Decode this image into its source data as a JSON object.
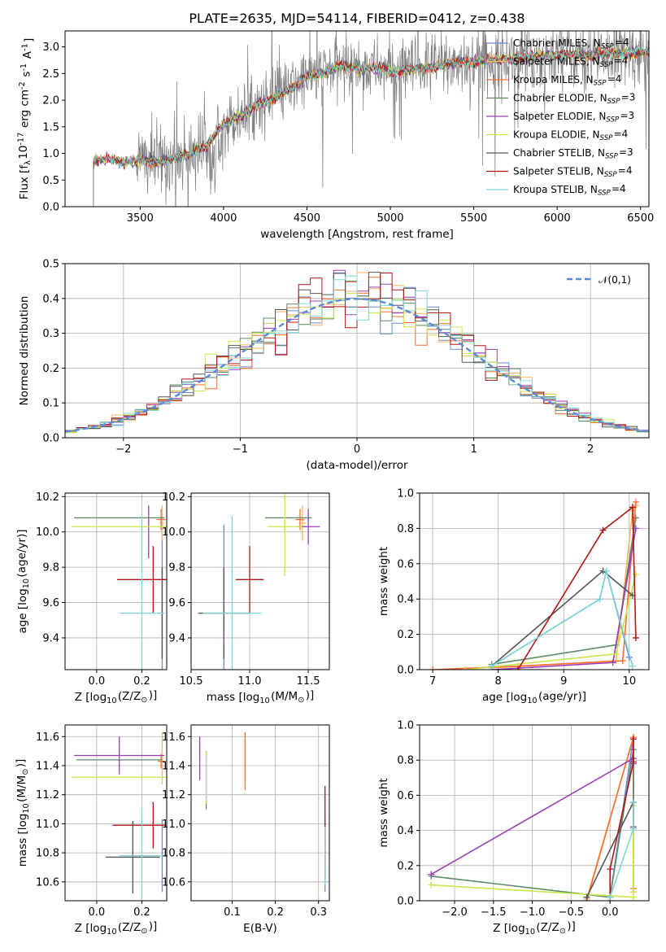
{
  "colors": {
    "series": [
      "#6a8bd8",
      "#fdb462",
      "#fb6d31",
      "#5b8a65",
      "#9b3eb6",
      "#c7e84b",
      "#555555",
      "#b01616",
      "#7fd7d7"
    ],
    "normal": "#5b8ad8",
    "spectrum": "#7f7f7f"
  },
  "chart_data": [
    {
      "id": "spectrum",
      "type": "line",
      "title": "PLATE=2635, MJD=54114, FIBERID=0412, z=0.438",
      "xlabel": "wavelength [Angstrom, rest frame]",
      "ylabel": "Flux [f$_\\lambda$10$^{-17}$ erg cm$^{-2}$ s$^{-1}$ A$^{-1}$]",
      "xlim": [
        3050,
        6550
      ],
      "ylim": [
        0,
        3.3
      ],
      "xticks": [
        3500,
        4000,
        4500,
        5000,
        5500,
        6000,
        6500
      ],
      "yticks": [
        0.0,
        0.5,
        1.0,
        1.5,
        2.0,
        2.5,
        3.0
      ],
      "grid": false,
      "legend_position": "top-right",
      "legend": [
        "Chabrier MILES, N$_{SSP}$=4",
        "Salpeter MILES, N$_{SSP}$=4",
        "Kroupa MILES, N$_{SSP}$=4",
        "Chabrier ELODIE, N$_{SSP}$=3",
        "Salpeter ELODIE, N$_{SSP}$=3",
        "Kroupa ELODIE, N$_{SSP}$=4",
        "Chabrier STELIB, N$_{SSP}$=3",
        "Salpeter STELIB, N$_{SSP}$=4",
        "Kroupa STELIB, N$_{SSP}$=4"
      ],
      "continuum": {
        "x": [
          3220,
          3300,
          3400,
          3500,
          3600,
          3700,
          3800,
          3900,
          4000,
          4100,
          4200,
          4300,
          4400,
          4500,
          4600,
          4700,
          4800,
          4900,
          5000,
          5200,
          5400,
          5600,
          5800,
          6000,
          6200,
          6500
        ],
        "y": [
          0.85,
          0.9,
          0.85,
          0.87,
          0.85,
          0.9,
          1.0,
          1.15,
          1.55,
          1.7,
          1.9,
          2.05,
          2.2,
          2.45,
          2.5,
          2.65,
          2.6,
          2.6,
          2.55,
          2.6,
          2.7,
          2.75,
          2.8,
          2.85,
          2.85,
          2.9
        ]
      },
      "noise_start_x": 3480
    },
    {
      "id": "residuals",
      "type": "line",
      "xlabel": "(data-model)/error",
      "ylabel": "Normed distribution",
      "xlim": [
        -2.5,
        2.5
      ],
      "ylim": [
        0,
        0.5
      ],
      "xticks": [
        -2,
        -1,
        0,
        1,
        2
      ],
      "yticks": [
        0.0,
        0.1,
        0.2,
        0.3,
        0.4,
        0.5
      ],
      "grid": true,
      "legend_position": "top-right",
      "normal_label": "$\\mathcal{N}(0,1)$",
      "bin_width": 0.1
    },
    {
      "id": "age-vs-Z",
      "type": "scatter",
      "xlabel": "Z [log$_{10}$(Z/Z$_\\odot$)]",
      "ylabel": "age  [log$_{10}$(age/yr)]",
      "xlim": [
        -0.14,
        0.31
      ],
      "ylim": [
        9.22,
        10.22
      ],
      "xticks": [
        0.0,
        0.2
      ],
      "yticks": [
        9.4,
        9.6,
        9.8,
        10.0,
        10.2
      ],
      "grid": true,
      "errorbars": [
        {
          "series": 0,
          "x": 0.29,
          "y": 9.54,
          "xerr": 0.0,
          "yerr": 0.5
        },
        {
          "series": 1,
          "x": 0.29,
          "y": 10.05,
          "xerr": 0.01,
          "yerr": 0.1
        },
        {
          "series": 2,
          "x": 0.285,
          "y": 10.07,
          "xerr": 0.02,
          "yerr": 0.06
        },
        {
          "series": 3,
          "x": 0.1,
          "y": 10.08,
          "xerr": 0.2,
          "yerr": 0.0
        },
        {
          "series": 4,
          "x": 0.23,
          "y": 10.0,
          "xerr": 0.0,
          "yerr": 0.15
        },
        {
          "series": 5,
          "x": 0.1,
          "y": 10.03,
          "xerr": 0.21,
          "yerr": 0.0
        },
        {
          "series": 6,
          "x": 0.29,
          "y": 9.54,
          "xerr": 0.005,
          "yerr": 0.26
        },
        {
          "series": 7,
          "x": 0.25,
          "y": 9.73,
          "xerr": 0.16,
          "yerr": 0.19
        },
        {
          "series": 8,
          "x": 0.2,
          "y": 9.54,
          "xerr": 0.1,
          "yerr": 0.55
        }
      ]
    },
    {
      "id": "age-vs-mass",
      "type": "scatter",
      "xlabel": "mass [log$_{10}$(M/M$_\\odot$)]",
      "xlim": [
        10.5,
        11.68
      ],
      "ylim": [
        9.22,
        10.22
      ],
      "xticks": [
        10.5,
        11.0,
        11.5
      ],
      "yticks": [
        9.4,
        9.6,
        9.8,
        10.0,
        10.2
      ],
      "grid": true,
      "errorbars": [
        {
          "series": 0,
          "x": 10.78,
          "y": 9.54,
          "xerr": 0.01,
          "yerr": 0.5
        },
        {
          "series": 1,
          "x": 11.45,
          "y": 10.05,
          "xerr": 0.03,
          "yerr": 0.1
        },
        {
          "series": 2,
          "x": 11.43,
          "y": 10.07,
          "xerr": 0.04,
          "yerr": 0.06
        },
        {
          "series": 3,
          "x": 11.33,
          "y": 10.08,
          "xerr": 0.2,
          "yerr": 0.0
        },
        {
          "series": 4,
          "x": 11.5,
          "y": 10.03,
          "xerr": 0.1,
          "yerr": 0.1
        },
        {
          "series": 5,
          "x": 11.3,
          "y": 10.03,
          "xerr": 0.15,
          "yerr": 0.28
        },
        {
          "series": 6,
          "x": 10.78,
          "y": 9.54,
          "xerr": 0.22,
          "yerr": 0.26
        },
        {
          "series": 7,
          "x": 11.0,
          "y": 9.73,
          "xerr": 0.12,
          "yerr": 0.19
        },
        {
          "series": 8,
          "x": 10.85,
          "y": 9.54,
          "xerr": 0.25,
          "yerr": 0.55
        }
      ]
    },
    {
      "id": "weight-vs-age",
      "type": "line",
      "xlabel": "age  [log$_{10}$(age/yr)]",
      "ylabel": "mass weight",
      "xlim": [
        6.8,
        10.3
      ],
      "ylim": [
        0,
        1.0
      ],
      "xticks": [
        7,
        8,
        9,
        10
      ],
      "yticks": [
        0.0,
        0.2,
        0.4,
        0.6,
        0.8,
        1.0
      ],
      "grid": true,
      "series": [
        {
          "x": [
            7.9,
            9.55,
            9.65,
            10.0
          ],
          "y": [
            0.02,
            0.4,
            0.56,
            0.07
          ]
        },
        {
          "x": [
            7.9,
            9.8,
            10.05,
            10.1
          ],
          "y": [
            0.01,
            0.05,
            0.9,
            0.93
          ]
        },
        {
          "x": [
            7.0,
            8.3,
            9.9,
            10.1
          ],
          "y": [
            0.0,
            0.02,
            0.05,
            0.95
          ]
        },
        {
          "x": [
            7.9,
            9.8,
            10.1
          ],
          "y": [
            0.03,
            0.14,
            0.86
          ]
        },
        {
          "x": [
            7.9,
            9.75,
            10.1
          ],
          "y": [
            0.0,
            0.04,
            0.8
          ]
        },
        {
          "x": [
            7.5,
            9.8,
            10.1
          ],
          "y": [
            0.0,
            0.09,
            0.54
          ]
        },
        {
          "x": [
            7.9,
            9.6,
            10.05
          ],
          "y": [
            0.02,
            0.56,
            0.42
          ]
        },
        {
          "x": [
            8.3,
            9.6,
            10.05,
            10.1
          ],
          "y": [
            0.0,
            0.79,
            0.92,
            0.18
          ]
        },
        {
          "x": [
            7.9,
            9.55,
            9.65,
            10.05
          ],
          "y": [
            0.02,
            0.4,
            0.56,
            0.02
          ]
        }
      ]
    },
    {
      "id": "mass-vs-Z",
      "type": "scatter",
      "xlabel": "Z [log$_{10}$(Z/Z$_\\odot$)]",
      "ylabel": "mass [log$_{10}$(M/M$_\\odot$)]",
      "xlim": [
        -0.14,
        0.31
      ],
      "ylim": [
        10.47,
        11.68
      ],
      "xticks": [
        0.0,
        0.2
      ],
      "yticks": [
        10.6,
        10.8,
        11.0,
        11.2,
        11.4,
        11.6
      ],
      "grid": true,
      "errorbars": [
        {
          "series": 0,
          "x": 0.29,
          "y": 10.78,
          "xerr": 0.0,
          "yerr": 0.25
        },
        {
          "series": 1,
          "x": 0.29,
          "y": 11.45,
          "xerr": 0.005,
          "yerr": 0.18
        },
        {
          "series": 2,
          "x": 0.285,
          "y": 11.43,
          "xerr": 0.015,
          "yerr": 0.05
        },
        {
          "series": 3,
          "x": 0.1,
          "y": 11.44,
          "xerr": 0.19,
          "yerr": 0.0
        },
        {
          "series": 4,
          "x": 0.1,
          "y": 11.47,
          "xerr": 0.2,
          "yerr": 0.13
        },
        {
          "series": 5,
          "x": 0.1,
          "y": 11.32,
          "xerr": 0.21,
          "yerr": 0.0
        },
        {
          "series": 6,
          "x": 0.16,
          "y": 10.77,
          "xerr": 0.12,
          "yerr": 0.25
        },
        {
          "series": 7,
          "x": 0.25,
          "y": 10.99,
          "xerr": 0.18,
          "yerr": 0.16
        },
        {
          "series": 8,
          "x": 0.2,
          "y": 10.78,
          "xerr": 0.1,
          "yerr": 0.33
        }
      ]
    },
    {
      "id": "mass-vs-EBV",
      "type": "scatter",
      "xlabel": "E(B-V)",
      "xlim": [
        0.005,
        0.325
      ],
      "ylim": [
        10.47,
        11.68
      ],
      "xticks": [
        0.1,
        0.2,
        0.3
      ],
      "yticks": [
        10.6,
        10.8,
        11.0,
        11.2,
        11.4,
        11.6
      ],
      "grid": true,
      "errorbars": [
        {
          "series": 0,
          "x": 0.315,
          "y": 10.78,
          "xerr": 0.0,
          "yerr": 0.25
        },
        {
          "series": 1,
          "x": 0.13,
          "y": 11.45,
          "xerr": 0.0,
          "yerr": 0.18
        },
        {
          "series": 2,
          "x": 0.13,
          "y": 11.43,
          "xerr": 0.0,
          "yerr": 0.2
        },
        {
          "series": 3,
          "x": 0.04,
          "y": 11.3,
          "xerr": 0.0,
          "yerr": 0.2
        },
        {
          "series": 4,
          "x": 0.025,
          "y": 11.45,
          "xerr": 0.0,
          "yerr": 0.15
        },
        {
          "series": 5,
          "x": 0.04,
          "y": 11.32,
          "xerr": 0.0,
          "yerr": 0.18
        },
        {
          "series": 6,
          "x": 0.315,
          "y": 10.77,
          "xerr": 0.0,
          "yerr": 0.15
        },
        {
          "series": 7,
          "x": 0.315,
          "y": 10.99,
          "xerr": 0.0,
          "yerr": 0.27
        },
        {
          "series": 8,
          "x": 0.315,
          "y": 10.78,
          "xerr": 0.0,
          "yerr": 0.2
        }
      ]
    },
    {
      "id": "weight-vs-Z",
      "type": "line",
      "xlabel": "Z [log$_{10}$(Z/Z$_\\odot$)]",
      "ylabel": "mass weight",
      "xlim": [
        -2.45,
        0.5
      ],
      "ylim": [
        0,
        1.0
      ],
      "xticks": [
        -2.0,
        -1.5,
        -1.0,
        -0.5,
        0.0
      ],
      "yticks": [
        0.0,
        0.2,
        0.4,
        0.6,
        0.8,
        1.0
      ],
      "grid": true,
      "series": [
        {
          "x": [
            0.0,
            0.3,
            0.3
          ],
          "y": [
            0.02,
            0.93,
            0.41
          ]
        },
        {
          "x": [
            -0.3,
            0.3,
            0.3
          ],
          "y": [
            0.01,
            0.93,
            0.05
          ]
        },
        {
          "x": [
            -0.3,
            0.3,
            0.3
          ],
          "y": [
            0.0,
            0.93,
            0.07
          ]
        },
        {
          "x": [
            -2.3,
            0.0,
            0.3,
            0.3
          ],
          "y": [
            0.14,
            0.02,
            0.86,
            0.56
          ]
        },
        {
          "x": [
            -2.3,
            0.3,
            0.3
          ],
          "y": [
            0.15,
            0.81,
            0.78
          ]
        },
        {
          "x": [
            -2.3,
            0.3,
            0.3
          ],
          "y": [
            0.09,
            0.02,
            0.54
          ]
        },
        {
          "x": [
            -0.3,
            0.3,
            0.3
          ],
          "y": [
            0.02,
            0.56,
            0.42
          ]
        },
        {
          "x": [
            0.0,
            0.0,
            0.3,
            0.3
          ],
          "y": [
            0.0,
            0.18,
            0.79,
            0.92
          ]
        },
        {
          "x": [
            0.0,
            0.3,
            0.3
          ],
          "y": [
            0.02,
            0.41,
            0.56
          ]
        }
      ]
    }
  ]
}
